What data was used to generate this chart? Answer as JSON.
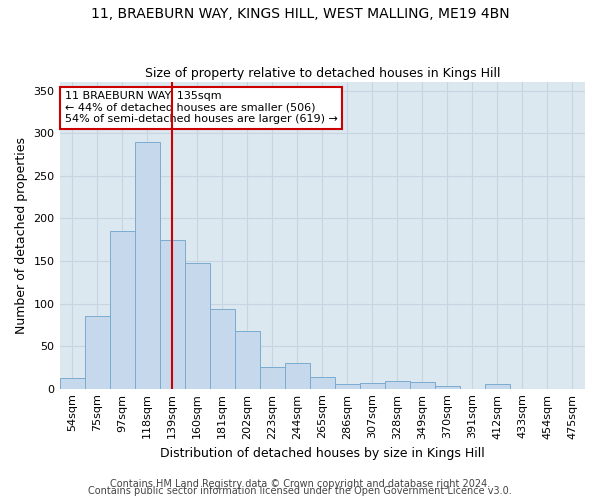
{
  "title1": "11, BRAEBURN WAY, KINGS HILL, WEST MALLING, ME19 4BN",
  "title2": "Size of property relative to detached houses in Kings Hill",
  "xlabel": "Distribution of detached houses by size in Kings Hill",
  "ylabel": "Number of detached properties",
  "footer1": "Contains HM Land Registry data © Crown copyright and database right 2024.",
  "footer2": "Contains public sector information licensed under the Open Government Licence v3.0.",
  "bar_labels": [
    "54sqm",
    "75sqm",
    "97sqm",
    "118sqm",
    "139sqm",
    "160sqm",
    "181sqm",
    "202sqm",
    "223sqm",
    "244sqm",
    "265sqm",
    "286sqm",
    "307sqm",
    "328sqm",
    "349sqm",
    "370sqm",
    "391sqm",
    "412sqm",
    "433sqm",
    "454sqm",
    "475sqm"
  ],
  "bar_values": [
    13,
    85,
    185,
    290,
    175,
    148,
    93,
    68,
    26,
    30,
    14,
    6,
    7,
    9,
    8,
    3,
    0,
    6,
    0,
    0,
    0
  ],
  "bar_color": "#c5d8ec",
  "bar_edge_color": "#7aabcf",
  "vline_x": 4.5,
  "vline_color": "#cc0000",
  "annotation_line1": "11 BRAEBURN WAY: 135sqm",
  "annotation_line2": "← 44% of detached houses are smaller (506)",
  "annotation_line3": "54% of semi-detached houses are larger (619) →",
  "annotation_box_color": "#ffffff",
  "annotation_box_edge": "#cc0000",
  "ylim": [
    0,
    360
  ],
  "yticks": [
    0,
    50,
    100,
    150,
    200,
    250,
    300,
    350
  ],
  "grid_color": "#c8d4e0",
  "bg_color": "#dce8f0",
  "title1_fontsize": 10,
  "title2_fontsize": 9,
  "xlabel_fontsize": 9,
  "ylabel_fontsize": 9,
  "tick_fontsize": 8,
  "footer_fontsize": 7
}
